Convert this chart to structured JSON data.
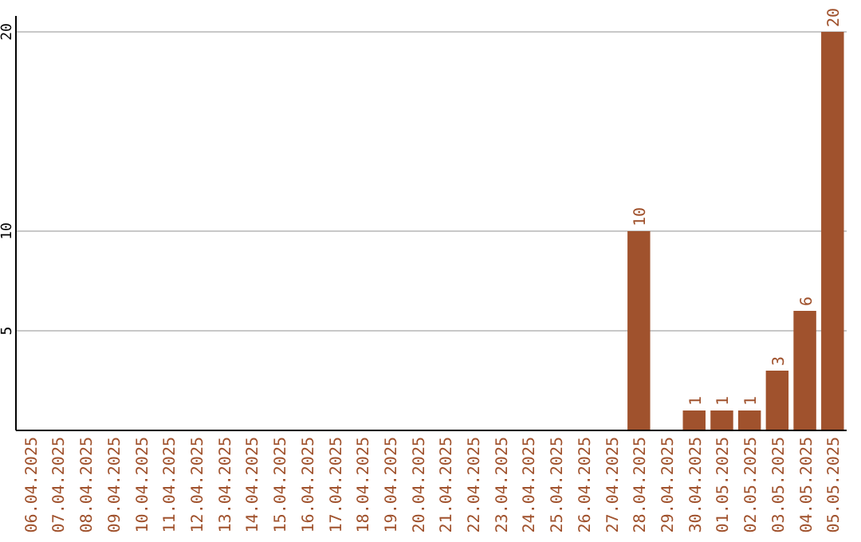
{
  "chart_data": {
    "type": "bar",
    "categories": [
      "06.04.2025",
      "07.04.2025",
      "08.04.2025",
      "09.04.2025",
      "10.04.2025",
      "11.04.2025",
      "12.04.2025",
      "13.04.2025",
      "14.04.2025",
      "15.04.2025",
      "16.04.2025",
      "17.04.2025",
      "18.04.2025",
      "19.04.2025",
      "20.04.2025",
      "21.04.2025",
      "22.04.2025",
      "23.04.2025",
      "24.04.2025",
      "25.04.2025",
      "26.04.2025",
      "27.04.2025",
      "28.04.2025",
      "29.04.2025",
      "30.04.2025",
      "01.05.2025",
      "02.05.2025",
      "03.05.2025",
      "04.05.2025",
      "05.05.2025"
    ],
    "values": [
      0,
      0,
      0,
      0,
      0,
      0,
      0,
      0,
      0,
      0,
      0,
      0,
      0,
      0,
      0,
      0,
      0,
      0,
      0,
      0,
      0,
      0,
      10,
      0,
      1,
      1,
      1,
      3,
      6,
      20
    ],
    "value_labels": [
      null,
      null,
      null,
      null,
      null,
      null,
      null,
      null,
      null,
      null,
      null,
      null,
      null,
      null,
      null,
      null,
      null,
      null,
      null,
      null,
      null,
      null,
      "10",
      null,
      "1",
      "1",
      "1",
      "3",
      "6",
      "20"
    ],
    "color": "#a0522d",
    "ylim": [
      0,
      20.8
    ],
    "yticks": [
      5,
      10,
      20
    ],
    "grid": "y"
  }
}
